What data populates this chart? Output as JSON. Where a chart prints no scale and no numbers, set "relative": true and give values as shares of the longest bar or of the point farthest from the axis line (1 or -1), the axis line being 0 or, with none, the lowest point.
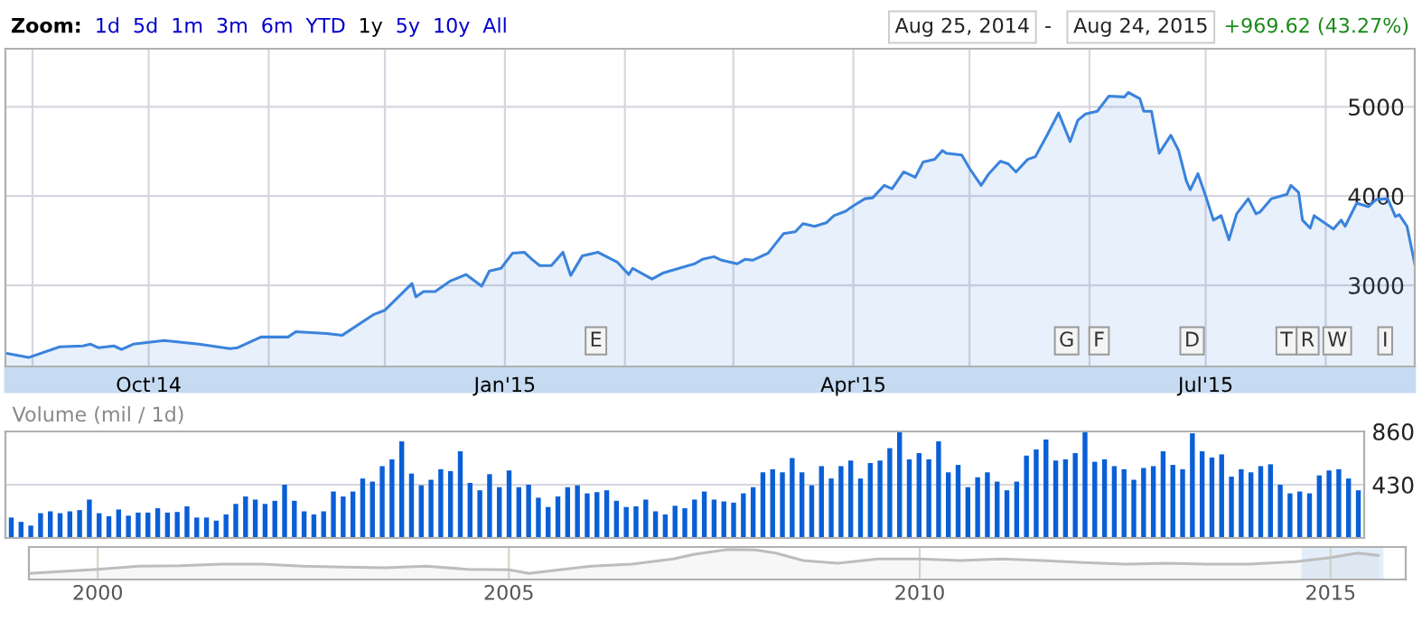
{
  "chart_data": [
    {
      "type": "area",
      "xlim": [
        "2014-08-25",
        "2015-08-24"
      ],
      "ylim": [
        2090,
        5650
      ],
      "yticks": [
        3000,
        4000,
        5000
      ],
      "grid": true,
      "xticks": [
        {
          "value": "2014-09-01",
          "label": null
        },
        {
          "value": "2014-10-01",
          "label": "Oct'14"
        },
        {
          "value": "2014-11-01",
          "label": null
        },
        {
          "value": "2014-12-01",
          "label": null
        },
        {
          "value": "2015-01-01",
          "label": "Jan'15"
        },
        {
          "value": "2015-02-01",
          "label": null
        },
        {
          "value": "2015-03-01",
          "label": null
        },
        {
          "value": "2015-04-01",
          "label": "Apr'15"
        },
        {
          "value": "2015-05-01",
          "label": null
        },
        {
          "value": "2015-06-01",
          "label": null
        },
        {
          "value": "2015-07-01",
          "label": "Jul'15"
        },
        {
          "value": "2015-08-01",
          "label": null
        }
      ],
      "annotations": [
        "Zoom:",
        "1d",
        "5d",
        "1m",
        "3m",
        "6m",
        "YTD",
        "1y",
        "5y",
        "10y",
        "All",
        "Aug 25, 2014",
        "-",
        "Aug 24, 2015",
        "+969.62 (43.27%)",
        "E",
        "G",
        "F",
        "D",
        "T",
        "R",
        "W",
        "I"
      ],
      "series": [
        {
          "color": "#3b83dc",
          "x": [
            "2014-08-25",
            "2014-08-31",
            "2014-09-08",
            "2014-09-14",
            "2014-09-16",
            "2014-09-18",
            "2014-09-22",
            "2014-09-24",
            "2014-09-27",
            "2014-10-05",
            "2014-10-14",
            "2014-10-22",
            "2014-10-24",
            "2014-10-30",
            "2014-11-06",
            "2014-11-08",
            "2014-11-16",
            "2014-11-20",
            "2014-11-28",
            "2014-12-01",
            "2014-12-08",
            "2014-12-09",
            "2014-12-11",
            "2014-12-14",
            "2014-12-18",
            "2014-12-22",
            "2014-12-26",
            "2014-12-28",
            "2014-12-31",
            "2015-01-03",
            "2015-01-06",
            "2015-01-08",
            "2015-01-10",
            "2015-01-13",
            "2015-01-16",
            "2015-01-18",
            "2015-01-21",
            "2015-01-25",
            "2015-01-30",
            "2015-02-02",
            "2015-02-03",
            "2015-02-08",
            "2015-02-11",
            "2015-02-19",
            "2015-02-21",
            "2015-02-24",
            "2015-02-26",
            "2015-03-02",
            "2015-03-04",
            "2015-03-06",
            "2015-03-10",
            "2015-03-14",
            "2015-03-17",
            "2015-03-19",
            "2015-03-22",
            "2015-03-25",
            "2015-03-27",
            "2015-03-30",
            "2015-04-01",
            "2015-04-04",
            "2015-04-06",
            "2015-04-09",
            "2015-04-11",
            "2015-04-14",
            "2015-04-17",
            "2015-04-19",
            "2015-04-22",
            "2015-04-24",
            "2015-04-25",
            "2015-04-29",
            "2015-05-01",
            "2015-05-04",
            "2015-05-06",
            "2015-05-09",
            "2015-05-11",
            "2015-05-13",
            "2015-05-16",
            "2015-05-18",
            "2015-05-21",
            "2015-05-24",
            "2015-05-27",
            "2015-05-29",
            "2015-05-31",
            "2015-06-03",
            "2015-06-06",
            "2015-06-10",
            "2015-06-11",
            "2015-06-14",
            "2015-06-15",
            "2015-06-17",
            "2015-06-19",
            "2015-06-22",
            "2015-06-24",
            "2015-06-26",
            "2015-06-27",
            "2015-06-29",
            "2015-07-01",
            "2015-07-03",
            "2015-07-05",
            "2015-07-07",
            "2015-07-09",
            "2015-07-12",
            "2015-07-14",
            "2015-07-15",
            "2015-07-18",
            "2015-07-22",
            "2015-07-23",
            "2015-07-25",
            "2015-07-26",
            "2015-07-28",
            "2015-07-29",
            "2015-08-02",
            "2015-08-03",
            "2015-08-05",
            "2015-08-06",
            "2015-08-09",
            "2015-08-12",
            "2015-08-14",
            "2015-08-17",
            "2015-08-19",
            "2015-08-20",
            "2015-08-22",
            "2015-08-24"
          ],
          "values": [
            2240,
            2190,
            2310,
            2320,
            2340,
            2300,
            2320,
            2280,
            2340,
            2380,
            2340,
            2290,
            2300,
            2420,
            2420,
            2480,
            2460,
            2440,
            2670,
            2720,
            3020,
            2870,
            2930,
            2930,
            3050,
            3120,
            2990,
            3160,
            3190,
            3360,
            3370,
            3290,
            3220,
            3220,
            3370,
            3110,
            3330,
            3370,
            3260,
            3120,
            3190,
            3070,
            3140,
            3240,
            3290,
            3320,
            3280,
            3240,
            3290,
            3280,
            3360,
            3580,
            3600,
            3690,
            3660,
            3700,
            3780,
            3830,
            3890,
            3970,
            3980,
            4120,
            4080,
            4270,
            4210,
            4380,
            4410,
            4510,
            4480,
            4460,
            4310,
            4120,
            4250,
            4390,
            4360,
            4270,
            4410,
            4440,
            4680,
            4930,
            4610,
            4850,
            4920,
            4950,
            5120,
            5110,
            5160,
            5090,
            4950,
            4950,
            4480,
            4680,
            4510,
            4170,
            4070,
            4250,
            4000,
            3730,
            3780,
            3510,
            3800,
            3970,
            3800,
            3820,
            3970,
            4020,
            4120,
            4040,
            3730,
            3640,
            3780,
            3660,
            3630,
            3730,
            3660,
            3920,
            3880,
            3960,
            3970,
            3770,
            3790,
            3660,
            3240
          ]
        }
      ]
    },
    {
      "type": "bar",
      "title": "Volume (mil / 1d)",
      "ylim": [
        0,
        860
      ],
      "yticks": [
        430,
        860
      ],
      "grid": "y",
      "tick_labels": "y",
      "categories": [
        null,
        null,
        null,
        null,
        null,
        null,
        null,
        null,
        null,
        null,
        null,
        null,
        null,
        null,
        null,
        null,
        null,
        null,
        null,
        null,
        null,
        null,
        null,
        null,
        null,
        null,
        null,
        null,
        null,
        null,
        null,
        null,
        null,
        null,
        null,
        null,
        null,
        null,
        null,
        null,
        null,
        null,
        null,
        null,
        null,
        null,
        null,
        null,
        null,
        null,
        null,
        null,
        null,
        null,
        null,
        null,
        null,
        null,
        null,
        null,
        null,
        null,
        null,
        null,
        null,
        null,
        null,
        null,
        null,
        null,
        null,
        null,
        null,
        null,
        null,
        null,
        null,
        null,
        null,
        null,
        null,
        null,
        null,
        null,
        null,
        null,
        null,
        null,
        null,
        null,
        null,
        null,
        null,
        null,
        null,
        null,
        null,
        null,
        null,
        null,
        null,
        null,
        null,
        null,
        null,
        null,
        null,
        null,
        null,
        null,
        null,
        null,
        null,
        null,
        null,
        null,
        null,
        null,
        null,
        null,
        null,
        null,
        null,
        null,
        null,
        null,
        null,
        null,
        null,
        null,
        null,
        null,
        null,
        null,
        null,
        null,
        null,
        null,
        null
      ],
      "series": [
        {
          "color": "#0a5fd6",
          "values": [
            165,
            130,
            100,
            200,
            215,
            200,
            215,
            225,
            310,
            200,
            175,
            230,
            180,
            205,
            205,
            240,
            205,
            210,
            255,
            165,
            165,
            140,
            190,
            275,
            335,
            310,
            275,
            300,
            430,
            300,
            215,
            190,
            215,
            375,
            335,
            375,
            480,
            455,
            580,
            635,
            780,
            520,
            425,
            470,
            555,
            540,
            700,
            445,
            385,
            515,
            410,
            545,
            410,
            430,
            325,
            250,
            335,
            410,
            425,
            360,
            370,
            385,
            300,
            250,
            255,
            310,
            215,
            190,
            260,
            240,
            310,
            375,
            310,
            295,
            285,
            360,
            410,
            530,
            555,
            530,
            645,
            530,
            425,
            580,
            480,
            580,
            625,
            480,
            605,
            625,
            725,
            860,
            635,
            685,
            635,
            780,
            530,
            590,
            410,
            490,
            530,
            455,
            385,
            455,
            665,
            715,
            795,
            625,
            635,
            685,
            860,
            615,
            635,
            580,
            555,
            470,
            565,
            580,
            700,
            590,
            555,
            845,
            700,
            650,
            675,
            495,
            555,
            530,
            580,
            595,
            430,
            360,
            375,
            360,
            505,
            545,
            555,
            480,
            385
          ]
        }
      ]
    },
    {
      "type": "area",
      "relative": true,
      "xlim": [
        "1999-03",
        "2015-12"
      ],
      "tick_labels": "x",
      "grid": "x",
      "xticks": [
        {
          "value": "2000-01",
          "label": "2000"
        },
        {
          "value": "2005-01",
          "label": "2005"
        },
        {
          "value": "2010-01",
          "label": "2010"
        },
        {
          "value": "2015-01",
          "label": "2015"
        }
      ],
      "bands": [
        {
          "axis": "x",
          "from": "2014-08-25",
          "to": "2015-08-24",
          "color": "#e3eefa"
        }
      ],
      "series": [
        {
          "color": "#bdbdbd",
          "x": [
            "1999-03",
            "1999-08",
            "2000-01",
            "2000-07",
            "2001-01",
            "2001-07",
            "2002-01",
            "2002-07",
            "2003-01",
            "2003-07",
            "2004-01",
            "2004-07",
            "2005-01",
            "2005-04",
            "2005-09",
            "2006-01",
            "2006-07",
            "2007-01",
            "2007-04",
            "2007-09",
            "2008-01",
            "2008-04",
            "2008-08",
            "2009-01",
            "2009-07",
            "2010-01",
            "2010-07",
            "2011-01",
            "2011-07",
            "2012-01",
            "2012-07",
            "2013-01",
            "2013-07",
            "2014-01",
            "2014-08",
            "2015-01",
            "2015-05",
            "2015-08"
          ],
          "values": [
            0.2,
            0.27,
            0.34,
            0.44,
            0.46,
            0.51,
            0.51,
            0.44,
            0.41,
            0.39,
            0.44,
            0.34,
            0.32,
            0.2,
            0.34,
            0.44,
            0.51,
            0.68,
            0.83,
            1,
            0.98,
            0.88,
            0.63,
            0.54,
            0.68,
            0.68,
            0.63,
            0.68,
            0.63,
            0.56,
            0.51,
            0.54,
            0.51,
            0.51,
            0.59,
            0.73,
            0.88,
            0.8
          ]
        }
      ]
    }
  ]
}
